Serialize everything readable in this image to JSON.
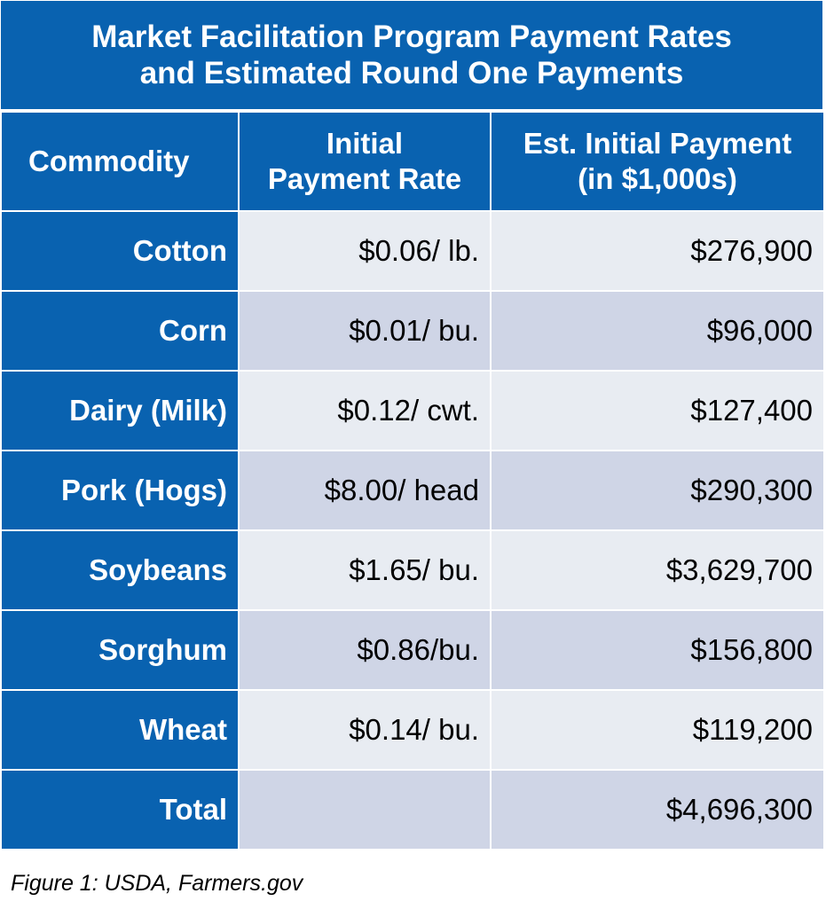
{
  "title": {
    "line1": "Market Facilitation Program Payment Rates",
    "line2": "and Estimated Round One Payments"
  },
  "chart_data": {
    "type": "table",
    "columns": [
      {
        "line1": "Commodity",
        "line2": ""
      },
      {
        "line1": "Initial",
        "line2": "Payment Rate"
      },
      {
        "line1": "Est. Initial Payment",
        "line2": "(in $1,000s)"
      }
    ],
    "rows": [
      {
        "commodity": "Cotton",
        "rate": "$0.06/ lb.",
        "payment": "$276,900"
      },
      {
        "commodity": "Corn",
        "rate": "$0.01/ bu.",
        "payment": "$96,000"
      },
      {
        "commodity": "Dairy (Milk)",
        "rate": "$0.12/ cwt.",
        "payment": "$127,400"
      },
      {
        "commodity": "Pork (Hogs)",
        "rate": "$8.00/ head",
        "payment": "$290,300"
      },
      {
        "commodity": "Soybeans",
        "rate": "$1.65/ bu.",
        "payment": "$3,629,700"
      },
      {
        "commodity": "Sorghum",
        "rate": "$0.86/bu.",
        "payment": "$156,800"
      },
      {
        "commodity": "Wheat",
        "rate": "$0.14/ bu.",
        "payment": "$119,200"
      },
      {
        "commodity": "Total",
        "rate": "",
        "payment": "$4,696,300"
      }
    ]
  },
  "caption": "Figure 1: USDA, Farmers.gov",
  "colors": {
    "header_blue": "#0962b0",
    "row_light": "#e8ecf2",
    "row_dark": "#cfd5e6"
  }
}
